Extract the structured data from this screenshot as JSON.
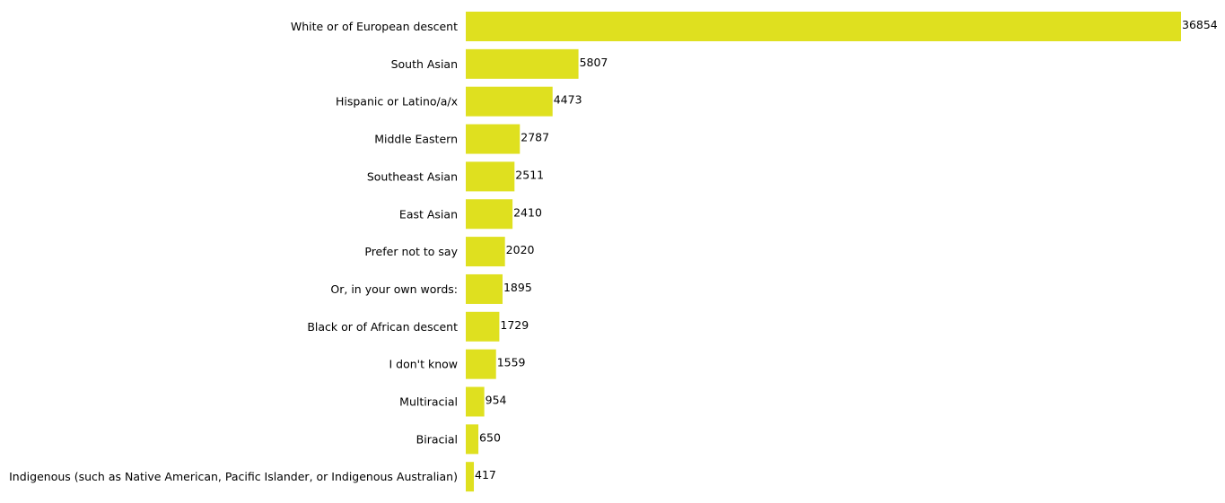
{
  "chart_data": {
    "type": "bar",
    "orientation": "horizontal",
    "categories": [
      "White or of European descent",
      "South Asian",
      "Hispanic or Latino/a/x",
      "Middle Eastern",
      "Southeast Asian",
      "East Asian",
      "Prefer not to say",
      "Or, in your own words:",
      "Black or of African descent",
      "I don't know",
      "Multiracial",
      "Biracial",
      "Indigenous (such as Native American, Pacific Islander, or Indigenous Australian)"
    ],
    "values": [
      36854,
      5807,
      4473,
      2787,
      2511,
      2410,
      2020,
      1895,
      1729,
      1559,
      954,
      650,
      417
    ],
    "value_labels": [
      "36854",
      "5807",
      "4473",
      "2787",
      "2511",
      "2410",
      "2020",
      "1895",
      "1729",
      "1559",
      "954",
      "650",
      "417"
    ],
    "title": "",
    "xlabel": "",
    "ylabel": "",
    "xlim": [
      0,
      36854
    ],
    "grid": false,
    "legend": "none",
    "bar_color": "#dfe01f"
  }
}
